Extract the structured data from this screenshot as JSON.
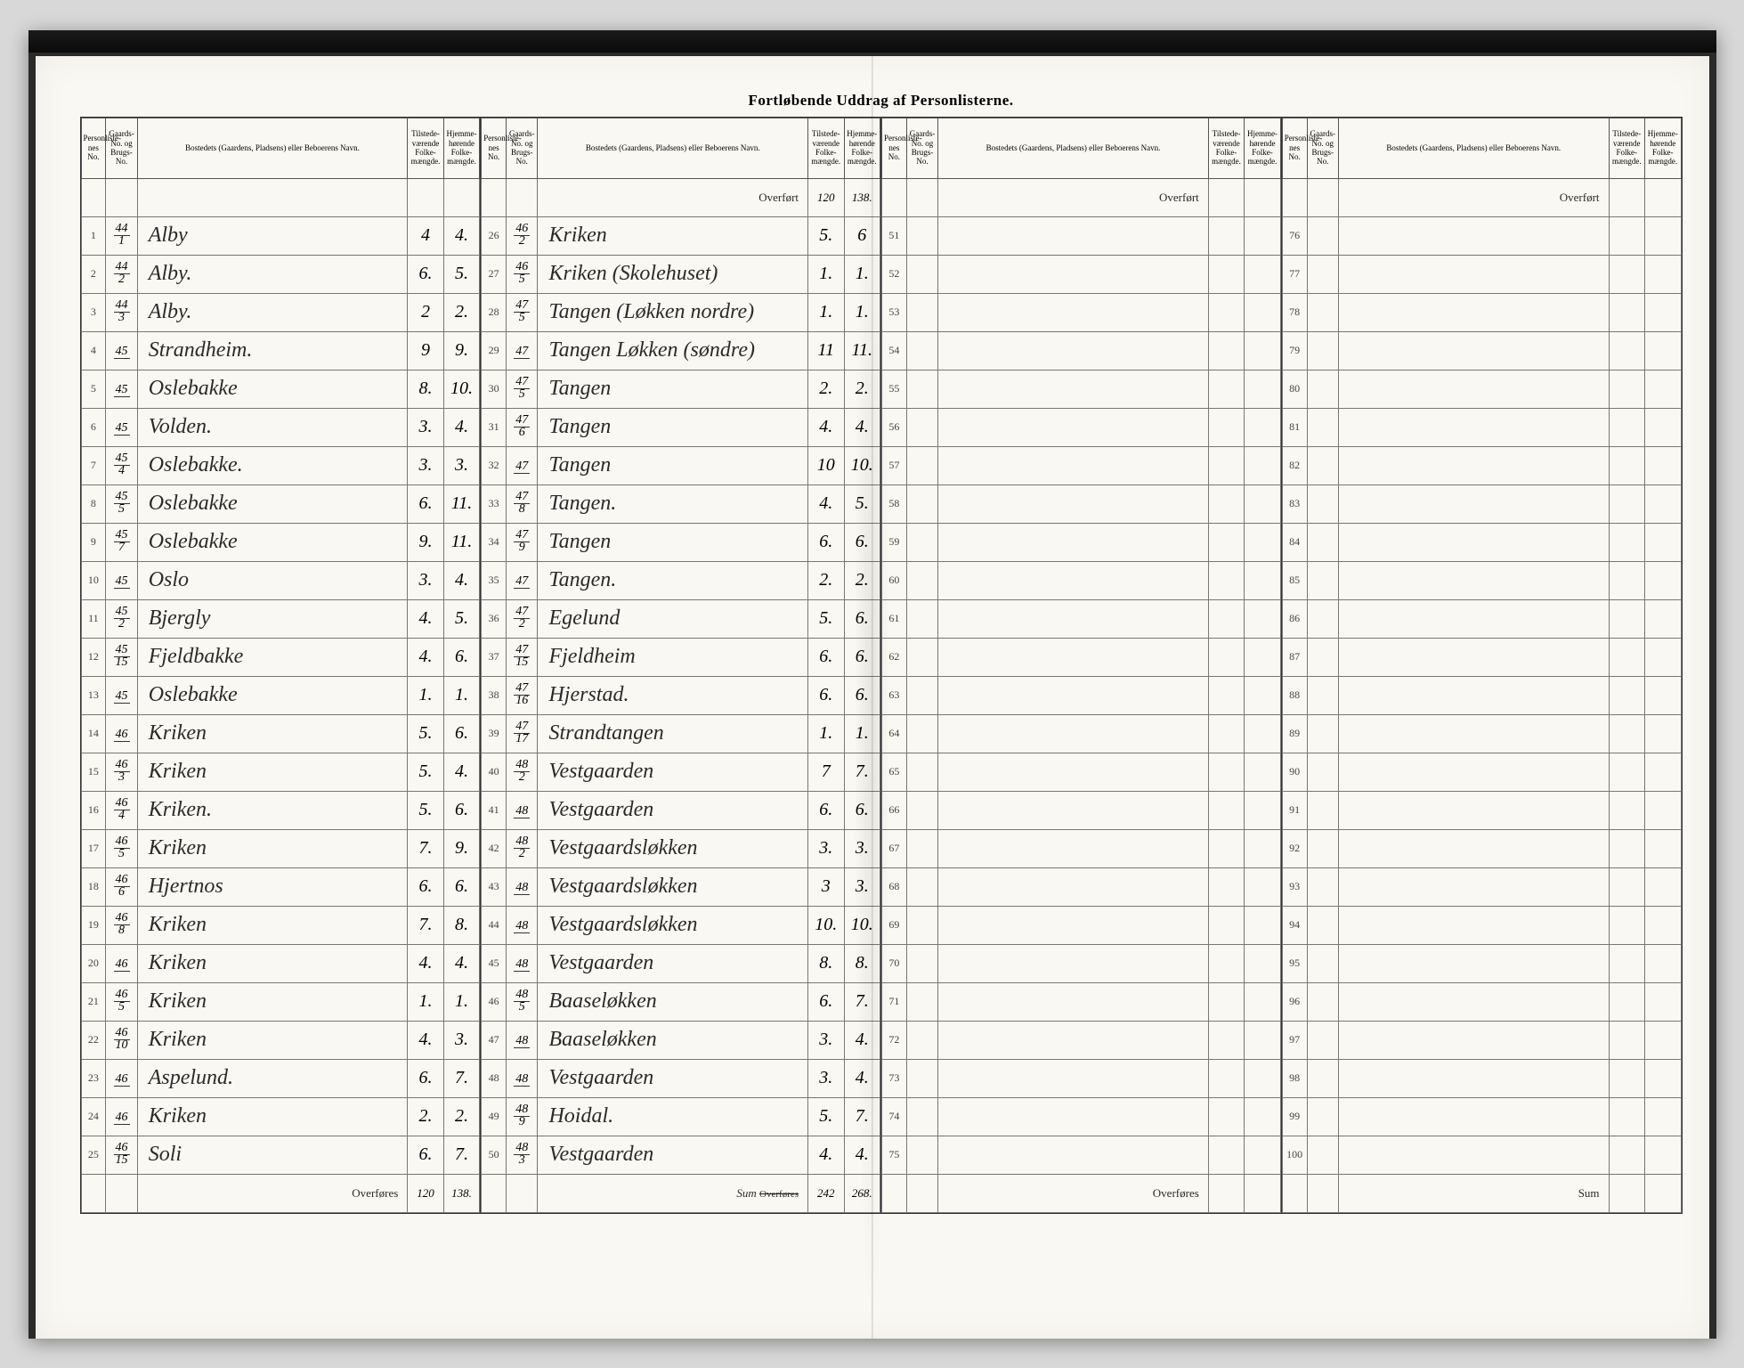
{
  "title": "Fortløbende Uddrag af Personlisterne.",
  "headers": {
    "pl": "Personliste-\nnes No.",
    "gbn": "Gaards-\nNo.\nog\nBrugs-\nNo.",
    "name": "Bostedets (Gaardens, Pladsens) eller\nBeboerens Navn.",
    "tilst": "Tilstede-\nværende\nFolke-\nmængde.",
    "hjem": "Hjemme-\nhørende\nFolke-\nmængde."
  },
  "overfort_label": "Overført",
  "overfores_label": "Overføres",
  "sum_label": "Sum",
  "panel1": {
    "rows": [
      {
        "pl": "1",
        "g": "44",
        "b": "1",
        "name": "Alby",
        "t": "4",
        "h": "4."
      },
      {
        "pl": "2",
        "g": "44",
        "b": "2",
        "name": "Alby.",
        "t": "6.",
        "h": "5."
      },
      {
        "pl": "3",
        "g": "44",
        "b": "3",
        "name": "Alby.",
        "t": "2",
        "h": "2."
      },
      {
        "pl": "4",
        "g": "45",
        "b": "",
        "name": "Strandheim.",
        "t": "9",
        "h": "9."
      },
      {
        "pl": "5",
        "g": "45",
        "b": "",
        "name": "Oslebakke",
        "t": "8.",
        "h": "10."
      },
      {
        "pl": "6",
        "g": "45",
        "b": "",
        "name": "Volden.",
        "t": "3.",
        "h": "4."
      },
      {
        "pl": "7",
        "g": "45",
        "b": "4",
        "name": "Oslebakke.",
        "t": "3.",
        "h": "3."
      },
      {
        "pl": "8",
        "g": "45",
        "b": "5",
        "name": "Oslebakke",
        "t": "6.",
        "h": "11."
      },
      {
        "pl": "9",
        "g": "45",
        "b": "7",
        "name": "Oslebakke",
        "t": "9.",
        "h": "11."
      },
      {
        "pl": "10",
        "g": "45",
        "b": "",
        "name": "Oslo",
        "t": "3.",
        "h": "4."
      },
      {
        "pl": "11",
        "g": "45",
        "b": "2",
        "name": "Bjergly",
        "t": "4.",
        "h": "5."
      },
      {
        "pl": "12",
        "g": "45",
        "b": "15",
        "name": "Fjeldbakke",
        "t": "4.",
        "h": "6."
      },
      {
        "pl": "13",
        "g": "45",
        "b": "",
        "name": "Oslebakke",
        "t": "1.",
        "h": "1."
      },
      {
        "pl": "14",
        "g": "46",
        "b": "",
        "name": "Kriken",
        "t": "5.",
        "h": "6."
      },
      {
        "pl": "15",
        "g": "46",
        "b": "3",
        "name": "Kriken",
        "t": "5.",
        "h": "4."
      },
      {
        "pl": "16",
        "g": "46",
        "b": "4",
        "name": "Kriken.",
        "t": "5.",
        "h": "6."
      },
      {
        "pl": "17",
        "g": "46",
        "b": "5",
        "name": "Kriken",
        "t": "7.",
        "h": "9."
      },
      {
        "pl": "18",
        "g": "46",
        "b": "6",
        "name": "Hjertnos",
        "t": "6.",
        "h": "6."
      },
      {
        "pl": "19",
        "g": "46",
        "b": "8",
        "name": "Kriken",
        "t": "7.",
        "h": "8."
      },
      {
        "pl": "20",
        "g": "46",
        "b": "",
        "name": "Kriken",
        "t": "4.",
        "h": "4."
      },
      {
        "pl": "21",
        "g": "46",
        "b": "5",
        "name": "Kriken",
        "t": "1.",
        "h": "1."
      },
      {
        "pl": "22",
        "g": "46",
        "b": "10",
        "name": "Kriken",
        "t": "4.",
        "h": "3."
      },
      {
        "pl": "23",
        "g": "46",
        "b": "",
        "name": "Aspelund.",
        "t": "6.",
        "h": "7."
      },
      {
        "pl": "24",
        "g": "46",
        "b": "",
        "name": "Kriken",
        "t": "2.",
        "h": "2."
      },
      {
        "pl": "25",
        "g": "46",
        "b": "15",
        "name": "Soli",
        "t": "6.",
        "h": "7."
      }
    ],
    "footer": {
      "t": "120",
      "h": "138."
    }
  },
  "panel2": {
    "overfort": {
      "t": "120",
      "h": "138."
    },
    "rows": [
      {
        "pl": "26",
        "g": "46",
        "b": "2",
        "name": "Kriken",
        "t": "5.",
        "h": "6"
      },
      {
        "pl": "27",
        "g": "46",
        "b": "5",
        "name": "Kriken (Skolehuset)",
        "t": "1.",
        "h": "1."
      },
      {
        "pl": "28",
        "g": "47",
        "b": "5",
        "name": "Tangen (Løkken nordre)",
        "t": "1.",
        "h": "1."
      },
      {
        "pl": "29",
        "g": "47",
        "b": "",
        "name": "Tangen Løkken (søndre)",
        "t": "11",
        "h": "11."
      },
      {
        "pl": "30",
        "g": "47",
        "b": "5",
        "name": "Tangen",
        "t": "2.",
        "h": "2."
      },
      {
        "pl": "31",
        "g": "47",
        "b": "6",
        "name": "Tangen",
        "t": "4.",
        "h": "4."
      },
      {
        "pl": "32",
        "g": "47",
        "b": "",
        "name": "Tangen",
        "t": "10",
        "h": "10."
      },
      {
        "pl": "33",
        "g": "47",
        "b": "8",
        "name": "Tangen.",
        "t": "4.",
        "h": "5."
      },
      {
        "pl": "34",
        "g": "47",
        "b": "9",
        "name": "Tangen",
        "t": "6.",
        "h": "6."
      },
      {
        "pl": "35",
        "g": "47",
        "b": "",
        "name": "Tangen.",
        "t": "2.",
        "h": "2."
      },
      {
        "pl": "36",
        "g": "47",
        "b": "2",
        "name": "Egelund",
        "t": "5.",
        "h": "6."
      },
      {
        "pl": "37",
        "g": "47",
        "b": "15",
        "name": "Fjeldheim",
        "t": "6.",
        "h": "6."
      },
      {
        "pl": "38",
        "g": "47",
        "b": "16",
        "name": "Hjerstad.",
        "t": "6.",
        "h": "6."
      },
      {
        "pl": "39",
        "g": "47",
        "b": "17",
        "name": "Strandtangen",
        "t": "1.",
        "h": "1."
      },
      {
        "pl": "40",
        "g": "48",
        "b": "2",
        "name": "Vestgaarden",
        "t": "7",
        "h": "7."
      },
      {
        "pl": "41",
        "g": "48",
        "b": "",
        "name": "Vestgaarden",
        "t": "6.",
        "h": "6."
      },
      {
        "pl": "42",
        "g": "48",
        "b": "2",
        "name": "Vestgaardsløkken",
        "t": "3.",
        "h": "3."
      },
      {
        "pl": "43",
        "g": "48",
        "b": "",
        "name": "Vestgaardsløkken",
        "t": "3",
        "h": "3."
      },
      {
        "pl": "44",
        "g": "48",
        "b": "",
        "name": "Vestgaardsløkken",
        "t": "10.",
        "h": "10."
      },
      {
        "pl": "45",
        "g": "48",
        "b": "",
        "name": "Vestgaarden",
        "t": "8.",
        "h": "8."
      },
      {
        "pl": "46",
        "g": "48",
        "b": "5",
        "name": "Baaseløkken",
        "t": "6.",
        "h": "7."
      },
      {
        "pl": "47",
        "g": "48",
        "b": "",
        "name": "Baaseløkken",
        "t": "3.",
        "h": "4."
      },
      {
        "pl": "48",
        "g": "48",
        "b": "",
        "name": "Vestgaarden",
        "t": "3.",
        "h": "4."
      },
      {
        "pl": "49",
        "g": "48",
        "b": "9",
        "name": "Hoidal.",
        "t": "5.",
        "h": "7."
      },
      {
        "pl": "50",
        "g": "48",
        "b": "3",
        "name": "Vestgaarden",
        "t": "4.",
        "h": "4."
      }
    ],
    "footer": {
      "label": "Sum",
      "t": "242",
      "h": "268."
    }
  },
  "panel3": {
    "rows": [
      {
        "pl": "51"
      },
      {
        "pl": "52"
      },
      {
        "pl": "53"
      },
      {
        "pl": "54"
      },
      {
        "pl": "55"
      },
      {
        "pl": "56"
      },
      {
        "pl": "57"
      },
      {
        "pl": "58"
      },
      {
        "pl": "59"
      },
      {
        "pl": "60"
      },
      {
        "pl": "61"
      },
      {
        "pl": "62"
      },
      {
        "pl": "63"
      },
      {
        "pl": "64"
      },
      {
        "pl": "65"
      },
      {
        "pl": "66"
      },
      {
        "pl": "67"
      },
      {
        "pl": "68"
      },
      {
        "pl": "69"
      },
      {
        "pl": "70"
      },
      {
        "pl": "71"
      },
      {
        "pl": "72"
      },
      {
        "pl": "73"
      },
      {
        "pl": "74"
      },
      {
        "pl": "75"
      }
    ]
  },
  "panel4": {
    "rows": [
      {
        "pl": "76"
      },
      {
        "pl": "77"
      },
      {
        "pl": "78"
      },
      {
        "pl": "79"
      },
      {
        "pl": "80"
      },
      {
        "pl": "81"
      },
      {
        "pl": "82"
      },
      {
        "pl": "83"
      },
      {
        "pl": "84"
      },
      {
        "pl": "85"
      },
      {
        "pl": "86"
      },
      {
        "pl": "87"
      },
      {
        "pl": "88"
      },
      {
        "pl": "89"
      },
      {
        "pl": "90"
      },
      {
        "pl": "91"
      },
      {
        "pl": "92"
      },
      {
        "pl": "93"
      },
      {
        "pl": "94"
      },
      {
        "pl": "95"
      },
      {
        "pl": "96"
      },
      {
        "pl": "97"
      },
      {
        "pl": "98"
      },
      {
        "pl": "99"
      },
      {
        "pl": "100"
      }
    ]
  },
  "colors": {
    "paper": "#faf8f2",
    "ink": "#2a2a2a",
    "rule": "#555"
  }
}
